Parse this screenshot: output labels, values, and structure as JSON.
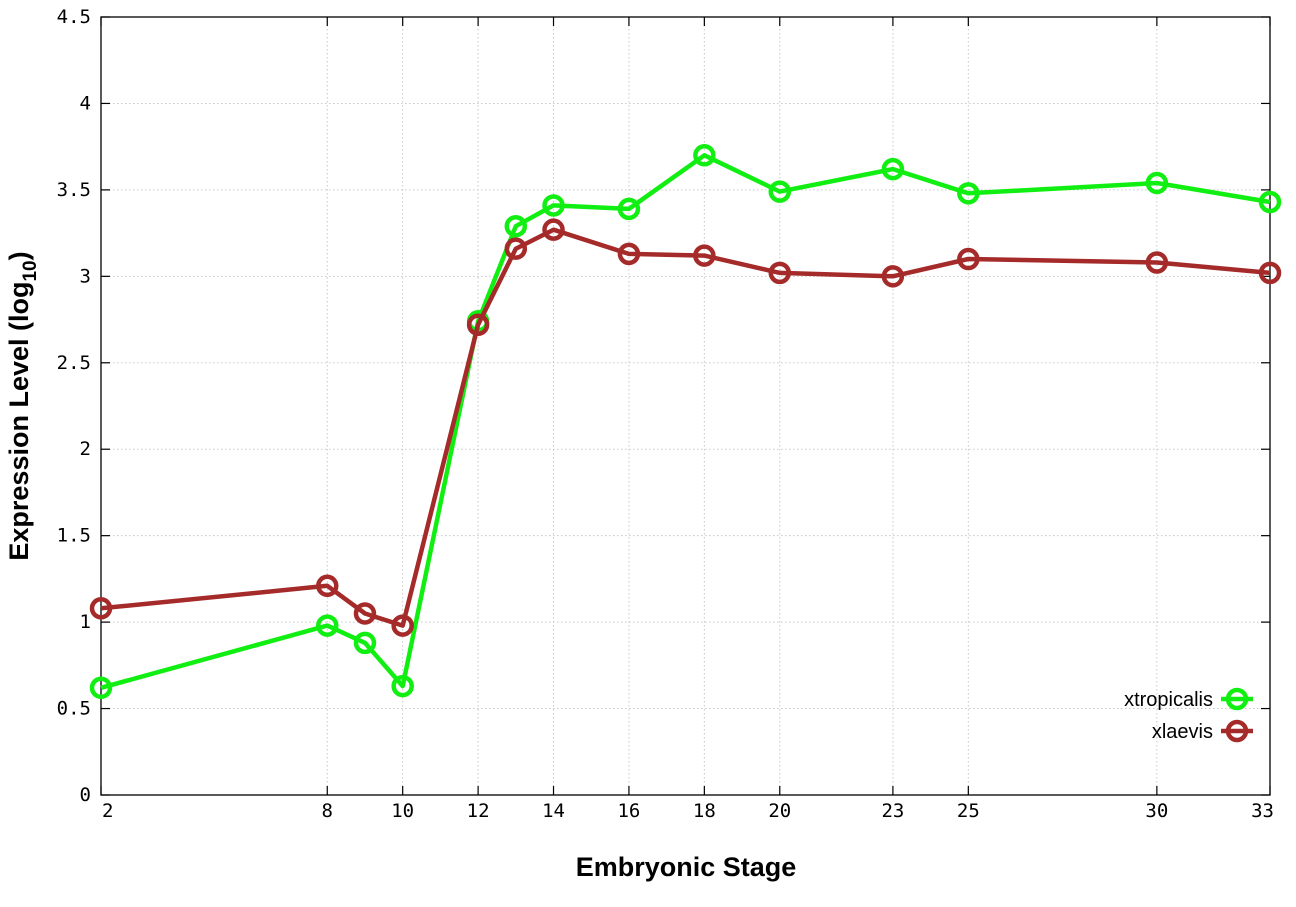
{
  "chart_data": {
    "type": "line",
    "xlabel": "Embryonic Stage",
    "ylabel_main": "Expression Level (log",
    "ylabel_sub": "10",
    "ylabel_close": ")",
    "x": [
      2,
      8,
      9,
      10,
      12,
      13,
      14,
      16,
      18,
      20,
      23,
      25,
      30,
      33
    ],
    "x_ticks": [
      2,
      8,
      10,
      12,
      14,
      16,
      18,
      20,
      23,
      25,
      30,
      33
    ],
    "xlim": [
      2,
      33
    ],
    "ylim": [
      0,
      4.5
    ],
    "y_ticks": [
      0,
      0.5,
      1,
      1.5,
      2,
      2.5,
      3,
      3.5,
      4,
      4.5
    ],
    "y_tick_labels": [
      "0",
      "0.5",
      "1",
      "1.5",
      "2",
      "2.5",
      "3",
      "3.5",
      "4",
      "4.5"
    ],
    "grid": true,
    "legend_position": "bottom-right",
    "series": [
      {
        "name": "xtropicalis",
        "color": "#11ee11",
        "values": [
          0.62,
          0.98,
          0.88,
          0.63,
          2.74,
          3.29,
          3.41,
          3.39,
          3.7,
          3.49,
          3.62,
          3.48,
          3.54,
          3.43
        ]
      },
      {
        "name": "xlaevis",
        "color": "#a52a2a",
        "values": [
          1.08,
          1.21,
          1.05,
          0.98,
          2.72,
          3.16,
          3.27,
          3.13,
          3.12,
          3.02,
          3.0,
          3.1,
          3.08,
          3.02
        ]
      }
    ]
  }
}
